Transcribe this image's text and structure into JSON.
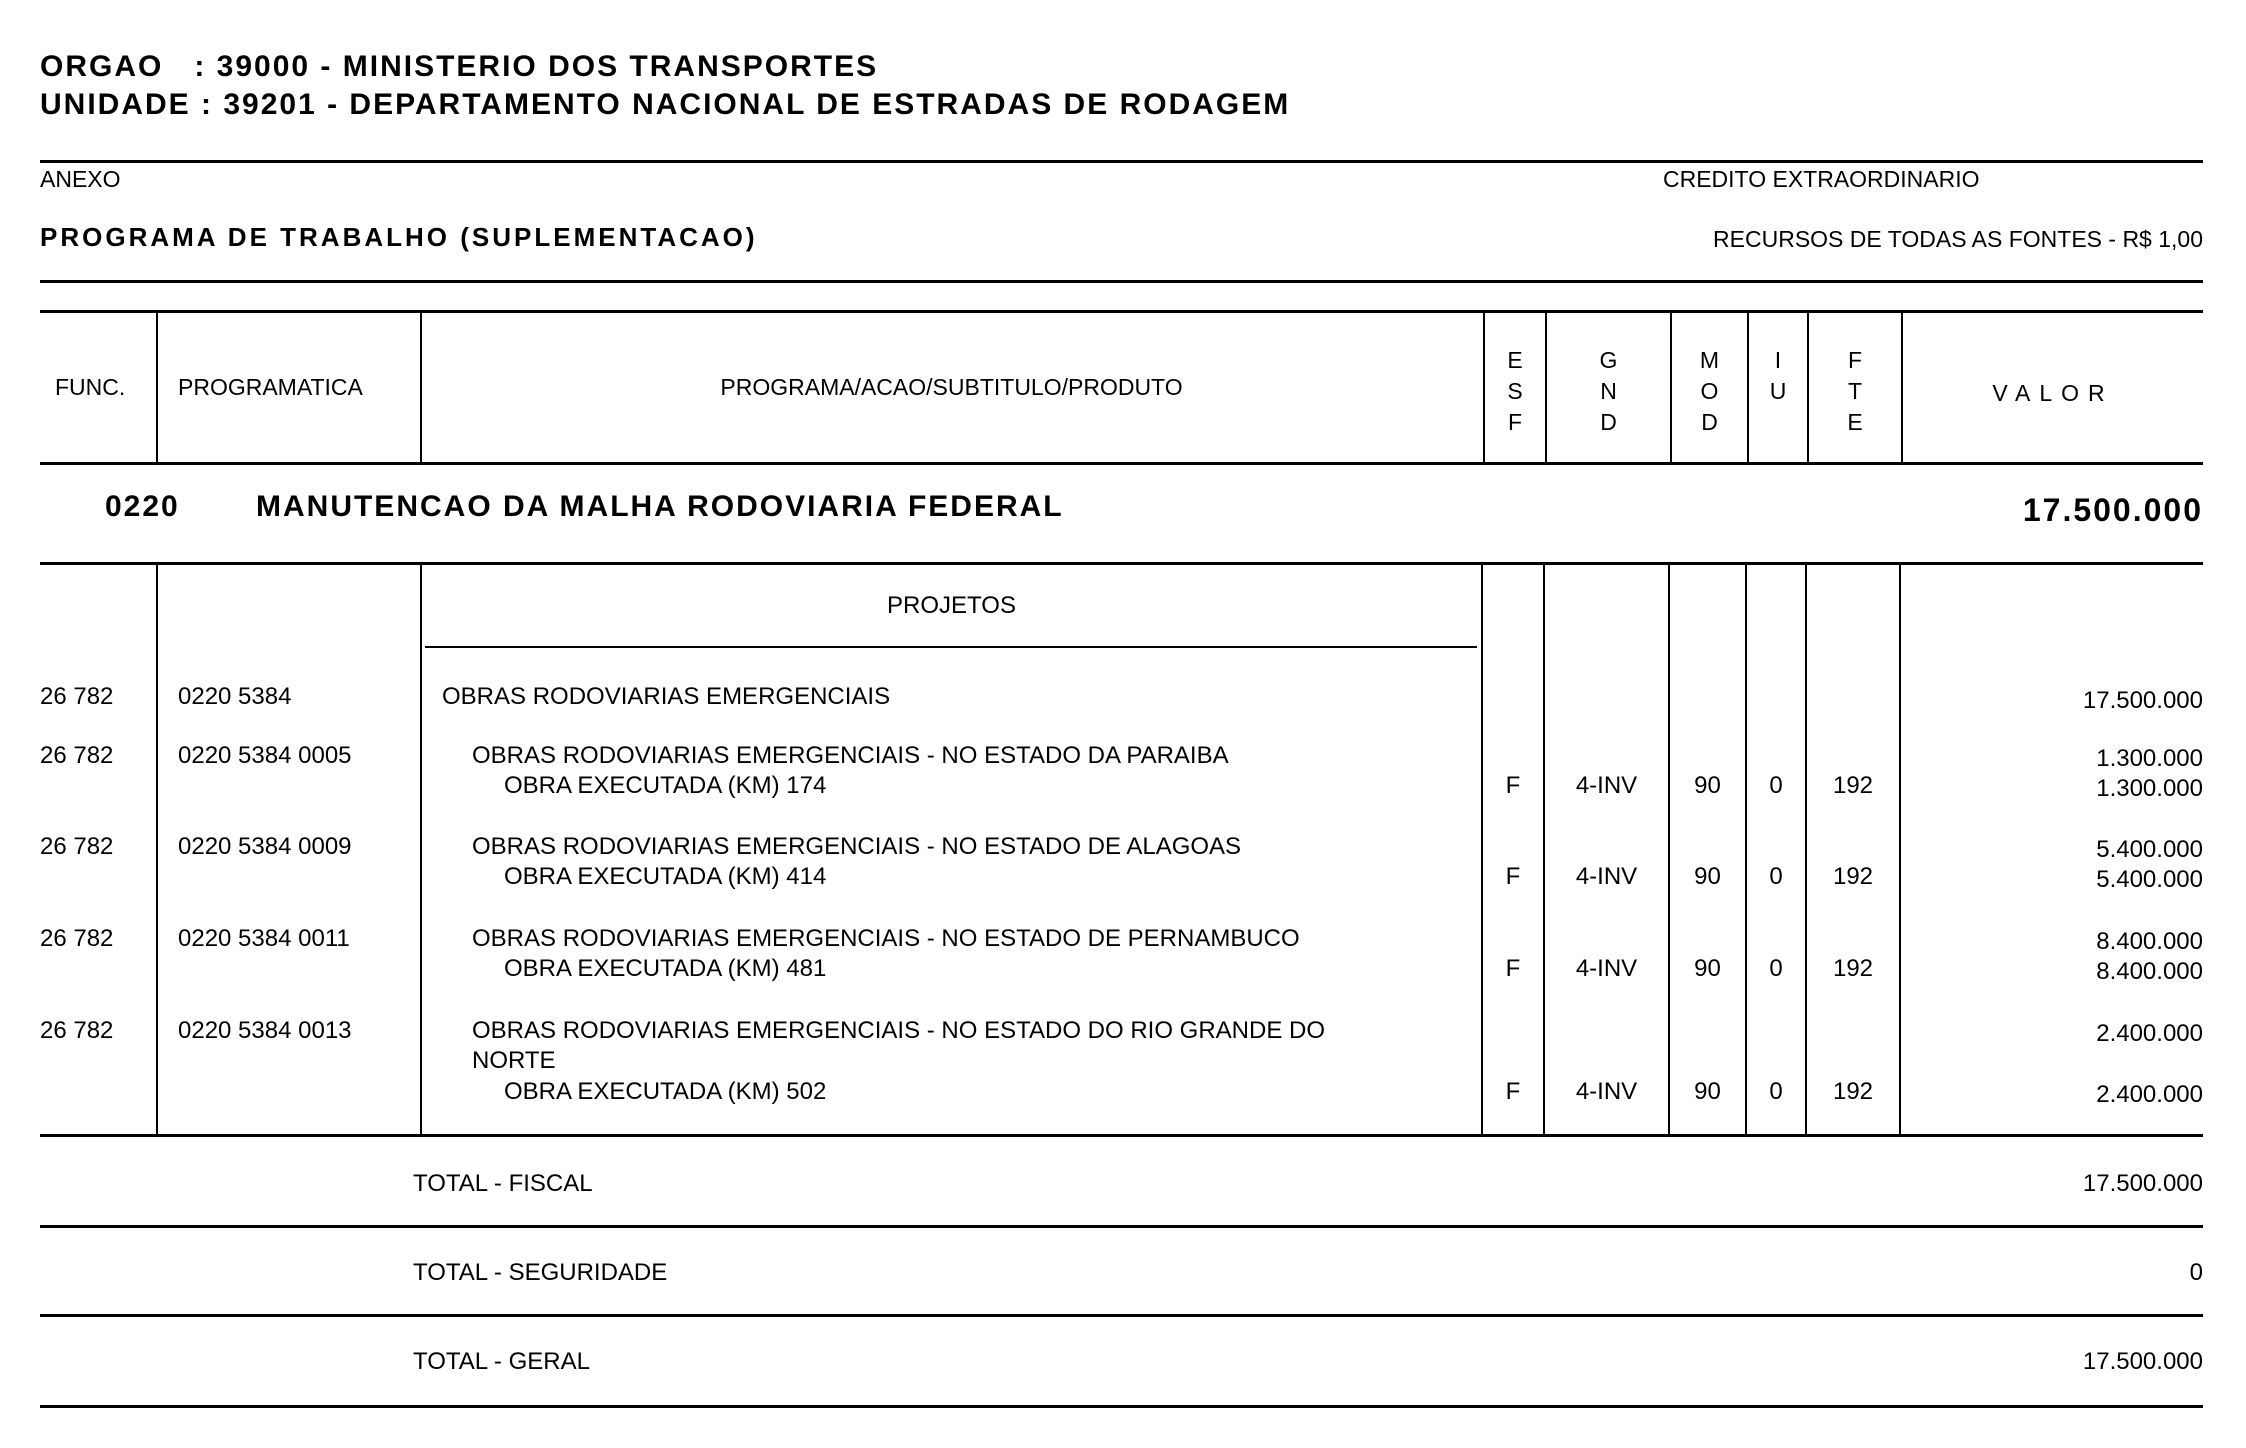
{
  "header": {
    "orgao": "ORGAO   : 39000 - MINISTERIO DOS TRANSPORTES",
    "unidade": "UNIDADE : 39201 - DEPARTAMENTO NACIONAL DE ESTRADAS DE RODAGEM",
    "anexo": "ANEXO",
    "credito": "CREDITO EXTRAORDINARIO",
    "programa_trabalho": "PROGRAMA DE TRABALHO (SUPLEMENTACAO)",
    "recursos": "RECURSOS DE TODAS AS FONTES - R$ 1,00"
  },
  "columns": {
    "func": "FUNC.",
    "programatica": "PROGRAMATICA",
    "programa": "PROGRAMA/ACAO/SUBTITULO/PRODUTO",
    "esf": "E S F",
    "gnd": "G N D",
    "mod": "M O D",
    "iu": "I U",
    "fte": "F T E",
    "valor": "VALOR"
  },
  "program": {
    "code": "0220",
    "name": "MANUTENCAO DA MALHA RODOVIARIA FEDERAL",
    "valor": "17.500.000"
  },
  "section": "PROJETOS",
  "action": {
    "func": "26 782",
    "programatica": "0220 5384",
    "title": "OBRAS RODOVIARIAS EMERGENCIAIS",
    "valor": "17.500.000"
  },
  "rows": [
    {
      "func": "26 782",
      "programatica": "0220 5384 0005",
      "title": "OBRAS RODOVIARIAS EMERGENCIAIS - NO ESTADO DA PARAIBA",
      "title2": "",
      "produto": "OBRA EXECUTADA (KM) 174",
      "esf": "F",
      "gnd": "4-INV",
      "mod": "90",
      "iu": "0",
      "fte": "192",
      "valor": "1.300.000",
      "valor_produto": "1.300.000"
    },
    {
      "func": "26 782",
      "programatica": "0220 5384 0009",
      "title": "OBRAS RODOVIARIAS EMERGENCIAIS - NO ESTADO DE ALAGOAS",
      "title2": "",
      "produto": "OBRA EXECUTADA (KM) 414",
      "esf": "F",
      "gnd": "4-INV",
      "mod": "90",
      "iu": "0",
      "fte": "192",
      "valor": "5.400.000",
      "valor_produto": "5.400.000"
    },
    {
      "func": "26 782",
      "programatica": "0220 5384 0011",
      "title": "OBRAS RODOVIARIAS EMERGENCIAIS - NO ESTADO DE PERNAMBUCO",
      "title2": "",
      "produto": "OBRA EXECUTADA (KM) 481",
      "esf": "F",
      "gnd": "4-INV",
      "mod": "90",
      "iu": "0",
      "fte": "192",
      "valor": "8.400.000",
      "valor_produto": "8.400.000"
    },
    {
      "func": "26 782",
      "programatica": "0220 5384 0013",
      "title": "OBRAS RODOVIARIAS EMERGENCIAIS - NO ESTADO DO RIO GRANDE DO",
      "title2": "NORTE",
      "produto": "OBRA EXECUTADA (KM) 502",
      "esf": "F",
      "gnd": "4-INV",
      "mod": "90",
      "iu": "0",
      "fte": "192",
      "valor": "2.400.000",
      "valor_produto": "2.400.000"
    }
  ],
  "totals": [
    {
      "label": "TOTAL - FISCAL",
      "valor": "17.500.000"
    },
    {
      "label": "TOTAL - SEGURIDADE",
      "valor": "0"
    },
    {
      "label": "TOTAL - GERAL",
      "valor": "17.500.000"
    }
  ]
}
